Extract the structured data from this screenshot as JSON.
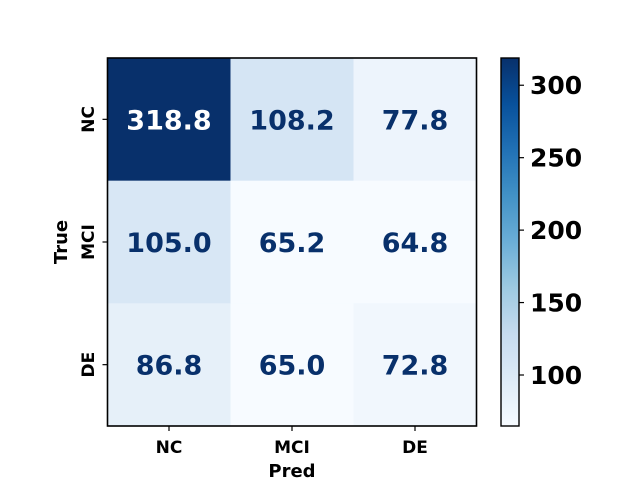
{
  "chart_data": {
    "type": "heatmap",
    "xlabel": "Pred",
    "ylabel": "True",
    "x_categories": [
      "NC",
      "MCI",
      "DE"
    ],
    "y_categories": [
      "NC",
      "MCI",
      "DE"
    ],
    "values": [
      [
        318.8,
        108.2,
        77.8
      ],
      [
        105.0,
        65.2,
        64.8
      ],
      [
        86.8,
        65.0,
        72.8
      ]
    ],
    "value_labels": [
      [
        "318.8",
        "108.2",
        "77.8"
      ],
      [
        "105.0",
        "65.2",
        "64.8"
      ],
      [
        "86.8",
        "65.0",
        "72.8"
      ]
    ],
    "colormap": "Blues",
    "vmin": 64.8,
    "vmax": 318.8,
    "colorbar_ticks": [
      100,
      150,
      200,
      250,
      300
    ],
    "label_color_dark": "#08306b",
    "label_color_light": "#ffffff"
  }
}
